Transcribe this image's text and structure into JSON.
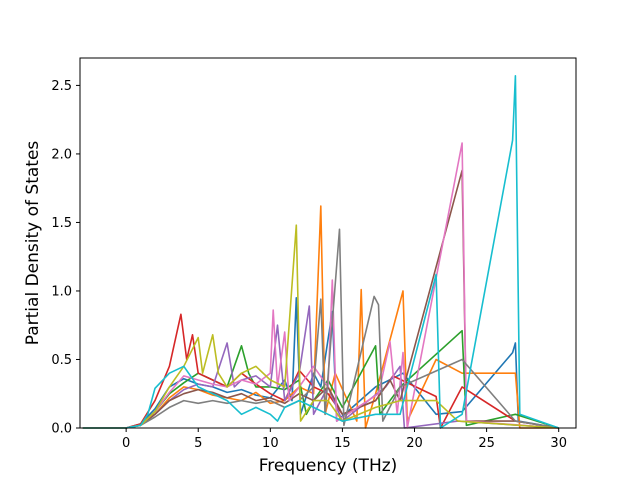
{
  "chart_data": {
    "type": "line",
    "title": "",
    "xlabel": "Frequency (THz)",
    "ylabel": "Partial Density of States",
    "xlim": [
      -3.2,
      31.2
    ],
    "ylim": [
      0.0,
      2.7
    ],
    "x_ticks": [
      0,
      5,
      10,
      15,
      20,
      25,
      30
    ],
    "y_ticks": [
      0.0,
      0.5,
      1.0,
      1.5,
      2.0,
      2.5
    ],
    "x_tick_labels": [
      "0",
      "5",
      "10",
      "15",
      "20",
      "25",
      "30"
    ],
    "y_tick_labels": [
      "0.0",
      "0.5",
      "1.0",
      "1.5",
      "2.0",
      "2.5"
    ],
    "grid": false,
    "legend": "none",
    "series": [
      {
        "color": "#1f77b4",
        "points": [
          [
            -3,
            0
          ],
          [
            0,
            0
          ],
          [
            1,
            0.03
          ],
          [
            2,
            0.14
          ],
          [
            3,
            0.3
          ],
          [
            4,
            0.36
          ],
          [
            5,
            0.32
          ],
          [
            6,
            0.3
          ],
          [
            7,
            0.26
          ],
          [
            8,
            0.28
          ],
          [
            9,
            0.24
          ],
          [
            10,
            0.22
          ],
          [
            11,
            0.35
          ],
          [
            11.5,
            0.2
          ],
          [
            11.8,
            0.95
          ],
          [
            12.1,
            0.1
          ],
          [
            13,
            0.4
          ],
          [
            13.5,
            0.3
          ],
          [
            14.3,
            0.85
          ],
          [
            14.6,
            0.05
          ],
          [
            17.3,
            0.3
          ],
          [
            19.2,
            0.4
          ],
          [
            21.5,
            0.1
          ],
          [
            23.3,
            0.12
          ],
          [
            26.8,
            0.55
          ],
          [
            27,
            0.62
          ],
          [
            27.2,
            0.05
          ],
          [
            30,
            0
          ]
        ]
      },
      {
        "color": "#ff7f0e",
        "points": [
          [
            -3,
            0
          ],
          [
            0,
            0
          ],
          [
            1,
            0.02
          ],
          [
            2,
            0.1
          ],
          [
            3,
            0.22
          ],
          [
            4,
            0.3
          ],
          [
            5,
            0.28
          ],
          [
            6,
            0.24
          ],
          [
            7,
            0.22
          ],
          [
            8,
            0.2
          ],
          [
            9,
            0.26
          ],
          [
            10,
            0.18
          ],
          [
            11,
            0.2
          ],
          [
            12,
            0.3
          ],
          [
            13,
            0.25
          ],
          [
            13.5,
            1.62
          ],
          [
            13.8,
            0.1
          ],
          [
            14.5,
            0.4
          ],
          [
            16,
            0.05
          ],
          [
            16.3,
            1.01
          ],
          [
            16.6,
            0
          ],
          [
            17.3,
            0.25
          ],
          [
            19.2,
            1.0
          ],
          [
            19.5,
            0.05
          ],
          [
            21.5,
            0.5
          ],
          [
            23.3,
            0.4
          ],
          [
            27,
            0.4
          ],
          [
            27.3,
            0
          ],
          [
            30,
            0
          ]
        ]
      },
      {
        "color": "#2ca02c",
        "points": [
          [
            -3,
            0
          ],
          [
            0,
            0
          ],
          [
            1,
            0.02
          ],
          [
            2,
            0.12
          ],
          [
            3,
            0.25
          ],
          [
            4,
            0.33
          ],
          [
            5,
            0.4
          ],
          [
            6,
            0.35
          ],
          [
            7,
            0.3
          ],
          [
            8,
            0.6
          ],
          [
            8.5,
            0.4
          ],
          [
            9,
            0.3
          ],
          [
            10,
            0.3
          ],
          [
            11,
            0.28
          ],
          [
            12,
            0.35
          ],
          [
            12.5,
            0.1
          ],
          [
            13,
            0.2
          ],
          [
            14,
            0.35
          ],
          [
            15,
            0.15
          ],
          [
            17.3,
            0.6
          ],
          [
            17.6,
            0.1
          ],
          [
            19,
            0.3
          ],
          [
            23.3,
            0.71
          ],
          [
            23.6,
            0.02
          ],
          [
            27,
            0.1
          ],
          [
            30,
            0
          ]
        ]
      },
      {
        "color": "#d62728",
        "points": [
          [
            -3,
            0
          ],
          [
            0,
            0
          ],
          [
            1,
            0.03
          ],
          [
            2,
            0.2
          ],
          [
            3,
            0.45
          ],
          [
            3.8,
            0.83
          ],
          [
            4.2,
            0.5
          ],
          [
            4.6,
            0.68
          ],
          [
            5,
            0.4
          ],
          [
            6,
            0.35
          ],
          [
            7,
            0.3
          ],
          [
            8,
            0.4
          ],
          [
            9,
            0.32
          ],
          [
            10,
            0.25
          ],
          [
            11,
            0.2
          ],
          [
            12,
            0.42
          ],
          [
            13,
            0.3
          ],
          [
            14,
            0.25
          ],
          [
            15,
            0.1
          ],
          [
            17.3,
            0.2
          ],
          [
            18.5,
            0.38
          ],
          [
            21.5,
            0.23
          ],
          [
            21.8,
            0
          ],
          [
            23.3,
            0.3
          ],
          [
            27,
            0.05
          ],
          [
            30,
            0
          ]
        ]
      },
      {
        "color": "#9467bd",
        "points": [
          [
            -3,
            0
          ],
          [
            0,
            0
          ],
          [
            1,
            0.02
          ],
          [
            2,
            0.1
          ],
          [
            3,
            0.2
          ],
          [
            4,
            0.28
          ],
          [
            5,
            0.32
          ],
          [
            6,
            0.3
          ],
          [
            7,
            0.62
          ],
          [
            7.5,
            0.3
          ],
          [
            8,
            0.35
          ],
          [
            9,
            0.38
          ],
          [
            10,
            0.3
          ],
          [
            10.5,
            0.75
          ],
          [
            11,
            0.2
          ],
          [
            12,
            0.4
          ],
          [
            12.7,
            0.89
          ],
          [
            13,
            0.1
          ],
          [
            14,
            0.3
          ],
          [
            15,
            0.05
          ],
          [
            18,
            0.3
          ],
          [
            19,
            0.45
          ],
          [
            19.3,
            0
          ],
          [
            23,
            0.05
          ],
          [
            30,
            0
          ]
        ]
      },
      {
        "color": "#8c564b",
        "points": [
          [
            -3,
            0
          ],
          [
            0,
            0
          ],
          [
            1,
            0.02
          ],
          [
            2,
            0.1
          ],
          [
            3,
            0.2
          ],
          [
            4,
            0.25
          ],
          [
            5,
            0.28
          ],
          [
            6,
            0.26
          ],
          [
            7,
            0.22
          ],
          [
            8,
            0.25
          ],
          [
            9,
            0.2
          ],
          [
            10,
            0.22
          ],
          [
            11,
            0.18
          ],
          [
            12,
            0.25
          ],
          [
            13,
            0.2
          ],
          [
            14,
            0.3
          ],
          [
            15,
            0.1
          ],
          [
            17.3,
            0.2
          ],
          [
            18.3,
            0.35
          ],
          [
            19,
            0.2
          ],
          [
            23.3,
            1.88
          ],
          [
            23.6,
            0.05
          ],
          [
            27,
            0.05
          ],
          [
            30,
            0
          ]
        ]
      },
      {
        "color": "#e377c2",
        "points": [
          [
            -3,
            0
          ],
          [
            0,
            0
          ],
          [
            1,
            0.02
          ],
          [
            2,
            0.12
          ],
          [
            3,
            0.26
          ],
          [
            4,
            0.38
          ],
          [
            5,
            0.35
          ],
          [
            6,
            0.32
          ],
          [
            7,
            0.3
          ],
          [
            8,
            0.35
          ],
          [
            9,
            0.32
          ],
          [
            10,
            0.4
          ],
          [
            10.2,
            0.86
          ],
          [
            10.5,
            0.3
          ],
          [
            11,
            0.7
          ],
          [
            11.3,
            0.2
          ],
          [
            12,
            0.3
          ],
          [
            13,
            0.45
          ],
          [
            14,
            0.3
          ],
          [
            14.3,
            1.08
          ],
          [
            14.6,
            0.05
          ],
          [
            17.5,
            0.25
          ],
          [
            18.3,
            0.63
          ],
          [
            18.8,
            0.1
          ],
          [
            19.2,
            0.55
          ],
          [
            19.5,
            0
          ],
          [
            23.3,
            2.08
          ],
          [
            23.6,
            0.05
          ],
          [
            30,
            0
          ]
        ]
      },
      {
        "color": "#7f7f7f",
        "points": [
          [
            -3,
            0
          ],
          [
            0,
            0
          ],
          [
            1,
            0.02
          ],
          [
            2,
            0.08
          ],
          [
            3,
            0.15
          ],
          [
            4,
            0.2
          ],
          [
            5,
            0.18
          ],
          [
            6,
            0.2
          ],
          [
            7,
            0.18
          ],
          [
            8,
            0.2
          ],
          [
            9,
            0.18
          ],
          [
            10,
            0.2
          ],
          [
            11,
            0.15
          ],
          [
            12,
            0.2
          ],
          [
            13,
            0.3
          ],
          [
            13.5,
            0.94
          ],
          [
            13.8,
            0.1
          ],
          [
            14.8,
            1.45
          ],
          [
            15.1,
            0.02
          ],
          [
            17.2,
            0.96
          ],
          [
            17.5,
            0.9
          ],
          [
            17.8,
            0.05
          ],
          [
            19,
            0.3
          ],
          [
            23.3,
            0.5
          ],
          [
            27,
            0.05
          ],
          [
            30,
            0
          ]
        ]
      },
      {
        "color": "#bcbd22",
        "points": [
          [
            -3,
            0
          ],
          [
            0,
            0
          ],
          [
            1,
            0.02
          ],
          [
            2,
            0.12
          ],
          [
            3,
            0.3
          ],
          [
            4,
            0.45
          ],
          [
            5,
            0.66
          ],
          [
            5.3,
            0.4
          ],
          [
            6,
            0.68
          ],
          [
            6.4,
            0.4
          ],
          [
            7,
            0.3
          ],
          [
            8,
            0.4
          ],
          [
            9,
            0.45
          ],
          [
            10,
            0.35
          ],
          [
            11,
            0.3
          ],
          [
            11.8,
            1.48
          ],
          [
            12.1,
            0.05
          ],
          [
            13,
            0.2
          ],
          [
            14,
            0.2
          ],
          [
            15,
            0.05
          ],
          [
            17.3,
            0.15
          ],
          [
            19,
            0.2
          ],
          [
            21.5,
            0.2
          ],
          [
            23,
            0.05
          ],
          [
            30,
            0
          ]
        ]
      },
      {
        "color": "#17becf",
        "points": [
          [
            -3,
            0
          ],
          [
            0,
            0
          ],
          [
            1,
            0.02
          ],
          [
            1.5,
            0.1
          ],
          [
            2,
            0.29
          ],
          [
            3,
            0.4
          ],
          [
            4,
            0.45
          ],
          [
            5,
            0.3
          ],
          [
            6,
            0.25
          ],
          [
            7,
            0.2
          ],
          [
            8,
            0.1
          ],
          [
            9,
            0.15
          ],
          [
            10,
            0.1
          ],
          [
            10.5,
            0.05
          ],
          [
            11,
            0.15
          ],
          [
            12,
            0.2
          ],
          [
            13,
            0.15
          ],
          [
            14,
            0.1
          ],
          [
            15,
            0.05
          ],
          [
            17.3,
            0.1
          ],
          [
            19,
            0.1
          ],
          [
            21.5,
            1.12
          ],
          [
            21.8,
            0
          ],
          [
            23.3,
            0.1
          ],
          [
            26.8,
            2.1
          ],
          [
            27,
            2.57
          ],
          [
            27.3,
            0.1
          ],
          [
            30,
            0
          ]
        ]
      }
    ]
  }
}
